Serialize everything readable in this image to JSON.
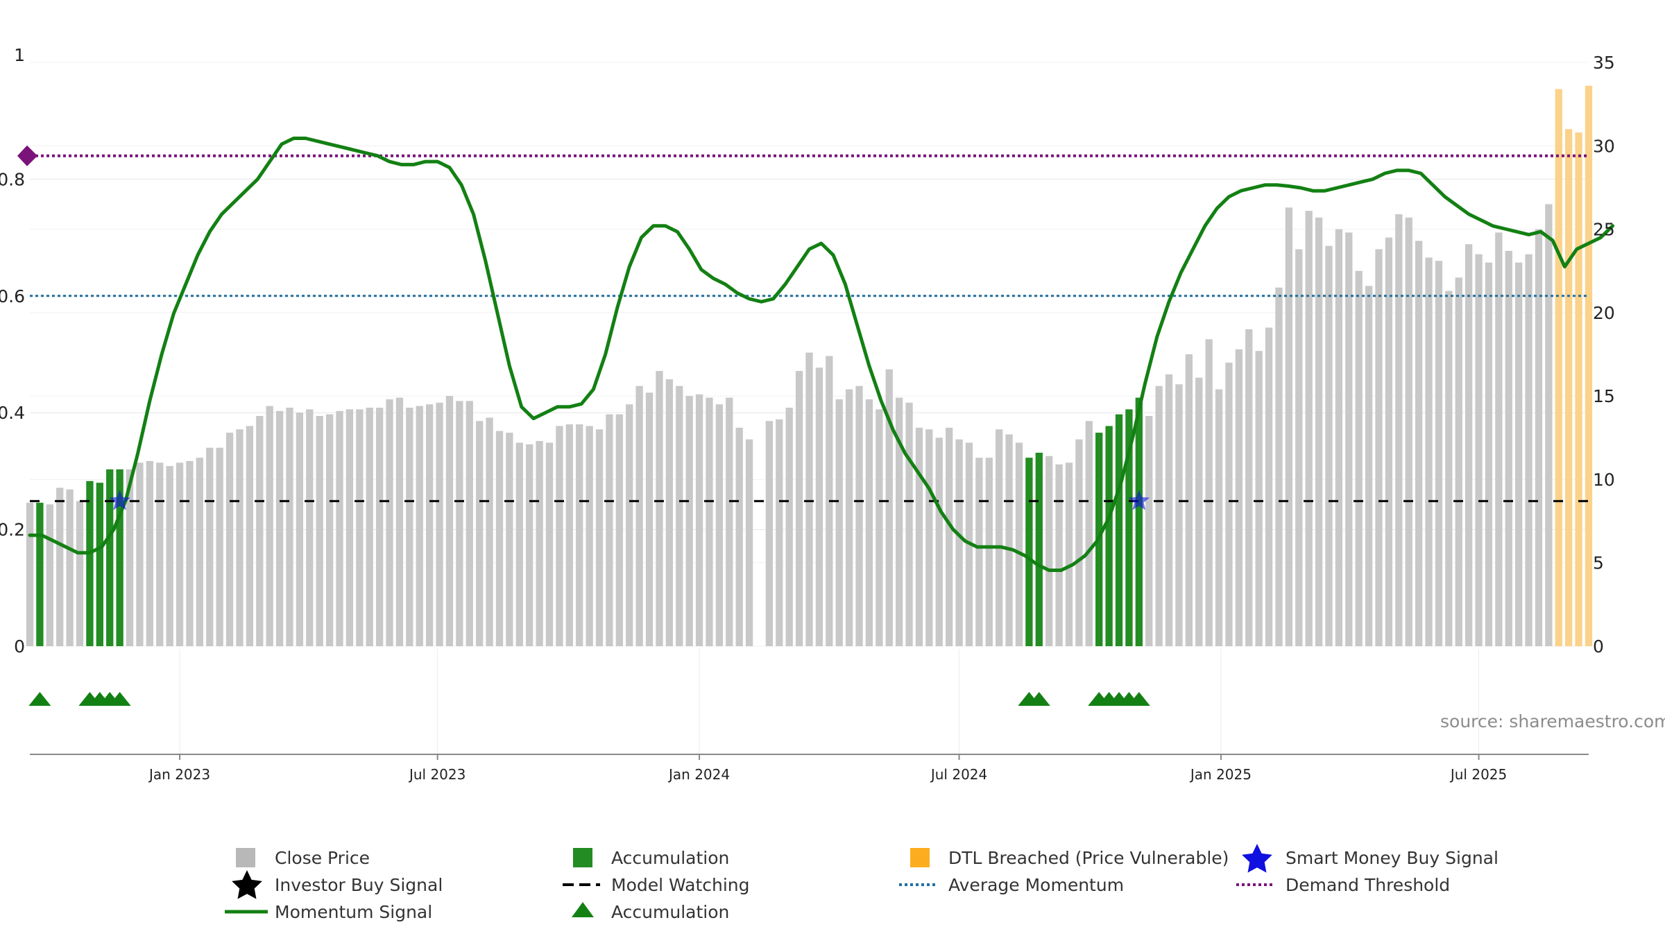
{
  "chart_data": {
    "type": "bar",
    "source": "source: sharemaestro.com",
    "left_axis": {
      "ylim": [
        0,
        1
      ],
      "ticks": [
        "0",
        "0.2",
        "0.4",
        "0.6",
        "0.8",
        "1"
      ],
      "tick_values": [
        0,
        0.2,
        0.4,
        0.6,
        0.8,
        1.0
      ]
    },
    "right_axis": {
      "ylim": [
        0,
        35
      ],
      "ticks": [
        "0",
        "5",
        "10",
        "15",
        "20",
        "25",
        "30",
        "35"
      ],
      "tick_values": [
        0,
        5,
        10,
        15,
        20,
        25,
        30,
        35
      ]
    },
    "x_axis": {
      "start_week": 0,
      "end_week": 156,
      "labels": [
        "Jan 2023",
        "Jul 2023",
        "Jan 2024",
        "Jul 2024",
        "Jan 2025",
        "Jul 2025"
      ],
      "label_weeks": [
        15,
        40.8,
        67,
        93,
        119.2,
        145
      ]
    },
    "close_price": [
      8.6,
      8.6,
      8.5,
      9.5,
      9.4,
      8.7,
      9.9,
      9.8,
      10.6,
      10.6,
      10.6,
      11.0,
      11.1,
      11.0,
      10.8,
      11.0,
      11.1,
      11.3,
      11.9,
      11.9,
      12.8,
      13.0,
      13.2,
      13.8,
      14.4,
      14.1,
      14.3,
      14.0,
      14.2,
      13.8,
      13.9,
      14.1,
      14.2,
      14.2,
      14.3,
      14.3,
      14.8,
      14.9,
      14.3,
      14.4,
      14.5,
      14.6,
      15.0,
      14.7,
      14.7,
      13.5,
      13.7,
      12.9,
      12.8,
      12.2,
      12.1,
      12.3,
      12.2,
      13.2,
      13.3,
      13.3,
      13.2,
      13.0,
      13.9,
      13.9,
      14.5,
      15.6,
      15.2,
      16.5,
      16.0,
      15.6,
      15.0,
      15.1,
      14.9,
      14.5,
      14.9,
      13.1,
      12.4,
      0,
      13.5,
      13.6,
      14.3,
      16.5,
      17.6,
      16.7,
      17.4,
      14.8,
      15.4,
      15.6,
      14.8,
      14.2,
      16.6,
      14.9,
      14.6,
      13.1,
      13.0,
      12.5,
      13.1,
      12.4,
      12.2,
      11.3,
      11.3,
      13.0,
      12.7,
      12.2,
      11.3,
      11.6,
      11.4,
      10.9,
      11.0,
      12.4,
      13.5,
      12.8,
      13.2,
      13.9,
      14.2,
      14.9,
      13.8,
      15.6,
      16.3,
      15.7,
      17.5,
      16.1,
      18.4,
      15.4,
      17.0,
      17.8,
      19.0,
      17.7,
      19.1,
      21.5,
      26.3,
      23.8,
      26.1,
      25.7,
      24.0,
      25.0,
      24.8,
      22.5,
      21.6,
      23.8,
      24.5,
      25.9,
      25.7,
      24.3,
      23.3,
      23.1,
      21.3,
      22.1,
      24.1,
      23.5,
      23.0,
      24.8,
      23.7,
      23.0,
      23.5,
      25.0,
      26.5,
      33.4,
      31.0,
      30.8,
      33.6
    ],
    "accumulation_weeks": [
      1,
      6,
      7,
      8,
      9,
      100,
      101,
      107,
      108,
      109,
      110,
      111
    ],
    "dtl_breached_weeks": [
      153,
      154,
      155,
      156
    ],
    "momentum_signal": [
      0.19,
      0.19,
      0.18,
      0.17,
      0.16,
      0.16,
      0.17,
      0.2,
      0.25,
      0.33,
      0.42,
      0.5,
      0.57,
      0.62,
      0.67,
      0.71,
      0.74,
      0.76,
      0.78,
      0.8,
      0.83,
      0.86,
      0.87,
      0.87,
      0.865,
      0.86,
      0.855,
      0.85,
      0.845,
      0.84,
      0.83,
      0.825,
      0.825,
      0.83,
      0.83,
      0.82,
      0.79,
      0.74,
      0.66,
      0.57,
      0.48,
      0.41,
      0.39,
      0.4,
      0.41,
      0.41,
      0.415,
      0.44,
      0.5,
      0.58,
      0.65,
      0.7,
      0.72,
      0.72,
      0.71,
      0.68,
      0.645,
      0.63,
      0.62,
      0.605,
      0.595,
      0.59,
      0.595,
      0.62,
      0.65,
      0.68,
      0.69,
      0.67,
      0.62,
      0.55,
      0.48,
      0.42,
      0.37,
      0.33,
      0.3,
      0.27,
      0.23,
      0.2,
      0.18,
      0.17,
      0.17,
      0.17,
      0.165,
      0.155,
      0.14,
      0.13,
      0.13,
      0.14,
      0.155,
      0.18,
      0.22,
      0.28,
      0.36,
      0.45,
      0.53,
      0.59,
      0.64,
      0.68,
      0.72,
      0.75,
      0.77,
      0.78,
      0.785,
      0.79,
      0.79,
      0.788,
      0.785,
      0.78,
      0.78,
      0.785,
      0.79,
      0.795,
      0.8,
      0.81,
      0.815,
      0.815,
      0.81,
      0.79,
      0.77,
      0.755,
      0.74,
      0.73,
      0.72,
      0.715,
      0.71,
      0.705,
      0.71,
      0.695,
      0.65,
      0.68,
      0.69,
      0.7,
      0.72
    ],
    "momentum_weeks_step": 1.2,
    "accumulation_signal_weeks": [
      1,
      6,
      7,
      8,
      9,
      100,
      101,
      107,
      108,
      109,
      110,
      111
    ],
    "investor_buy_signal_weeks": [],
    "smart_money_buy_signal_weeks": [
      9,
      111
    ],
    "smart_money_buy_signal_value": 8.7,
    "model_watching_value": 8.7,
    "average_momentum": 0.6,
    "demand_threshold": 0.84,
    "legend": [
      "Close Price",
      "Accumulation",
      "DTL Breached (Price Vulnerable)",
      "Smart Money Buy Signal",
      "Investor Buy Signal",
      "Model Watching",
      "Average Momentum",
      "Demand Threshold",
      "Momentum Signal",
      "Accumulation"
    ],
    "colors": {
      "close_price": "#c8c8c8",
      "accumulation": "#238c23",
      "dtl_breached": "#fbd28a",
      "momentum": "#138013",
      "average_momentum": "#1f6fa0",
      "demand_threshold": "#7a137a",
      "smart_money": "#1010e0",
      "investor": "#000000",
      "model_watching": "#000000",
      "grid": "#e6e6e6"
    }
  }
}
